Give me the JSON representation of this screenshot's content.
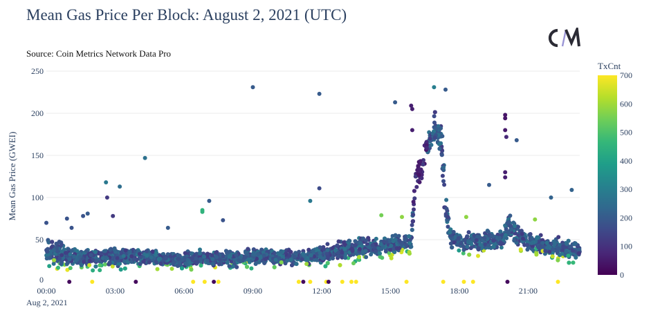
{
  "header": {
    "title": "Mean Gas Price Per Block: August 2, 2021 (UTC)",
    "source": "Source: Coin Metrics Network Data Pro",
    "logo_text": "CM"
  },
  "chart_data": {
    "type": "scatter",
    "title": "Mean Gas Price Per Block: August 2, 2021 (UTC)",
    "xlabel": "",
    "ylabel": "Mean Gas Price (GWEI)",
    "x_units": "hours UTC",
    "xlim": [
      0,
      23.25
    ],
    "ylim": [
      0,
      250
    ],
    "grid": true,
    "x_ticks": [
      {
        "value": 0,
        "label": "00:00"
      },
      {
        "value": 3,
        "label": "03:00"
      },
      {
        "value": 6,
        "label": "06:00"
      },
      {
        "value": 9,
        "label": "09:00"
      },
      {
        "value": 12,
        "label": "12:00"
      },
      {
        "value": 15,
        "label": "15:00"
      },
      {
        "value": 18,
        "label": "18:00"
      },
      {
        "value": 21,
        "label": "21:00"
      }
    ],
    "x_date_label": "Aug 2, 2021",
    "y_ticks": [
      0,
      50,
      100,
      150,
      200,
      250
    ],
    "colorbar": {
      "title": "TxCnt",
      "range": [
        0,
        700
      ],
      "ticks": [
        0,
        100,
        200,
        300,
        400,
        500,
        600,
        700
      ],
      "colorscale": [
        "#440154",
        "#482878",
        "#3e4989",
        "#31688e",
        "#26828e",
        "#1f9e89",
        "#35b779",
        "#6ece58",
        "#b5de2b",
        "#fde725"
      ],
      "placement": "right"
    },
    "trend": [
      {
        "hour": 0.0,
        "mean": 38,
        "spread": 12
      },
      {
        "hour": 1.0,
        "mean": 30,
        "spread": 9
      },
      {
        "hour": 2.0,
        "mean": 28,
        "spread": 8
      },
      {
        "hour": 3.0,
        "mean": 30,
        "spread": 8
      },
      {
        "hour": 4.0,
        "mean": 30,
        "spread": 7
      },
      {
        "hour": 5.0,
        "mean": 28,
        "spread": 7
      },
      {
        "hour": 6.0,
        "mean": 26,
        "spread": 6
      },
      {
        "hour": 7.0,
        "mean": 28,
        "spread": 7
      },
      {
        "hour": 8.0,
        "mean": 28,
        "spread": 7
      },
      {
        "hour": 9.0,
        "mean": 30,
        "spread": 7
      },
      {
        "hour": 10.0,
        "mean": 30,
        "spread": 7
      },
      {
        "hour": 11.0,
        "mean": 30,
        "spread": 7
      },
      {
        "hour": 12.0,
        "mean": 32,
        "spread": 8
      },
      {
        "hour": 13.0,
        "mean": 38,
        "spread": 9
      },
      {
        "hour": 14.0,
        "mean": 42,
        "spread": 9
      },
      {
        "hour": 15.0,
        "mean": 45,
        "spread": 9
      },
      {
        "hour": 15.9,
        "mean": 48,
        "spread": 8
      },
      {
        "hour": 16.1,
        "mean": 120,
        "spread": 15
      },
      {
        "hour": 16.5,
        "mean": 150,
        "spread": 15
      },
      {
        "hour": 16.9,
        "mean": 180,
        "spread": 15
      },
      {
        "hour": 17.2,
        "mean": 170,
        "spread": 14
      },
      {
        "hour": 17.4,
        "mean": 90,
        "spread": 20
      },
      {
        "hour": 17.6,
        "mean": 55,
        "spread": 10
      },
      {
        "hour": 18.0,
        "mean": 48,
        "spread": 9
      },
      {
        "hour": 19.0,
        "mean": 48,
        "spread": 9
      },
      {
        "hour": 19.9,
        "mean": 50,
        "spread": 9
      },
      {
        "hour": 20.1,
        "mean": 68,
        "spread": 12
      },
      {
        "hour": 20.6,
        "mean": 55,
        "spread": 10
      },
      {
        "hour": 21.0,
        "mean": 48,
        "spread": 8
      },
      {
        "hour": 22.0,
        "mean": 42,
        "spread": 8
      },
      {
        "hour": 23.25,
        "mean": 36,
        "spread": 8
      }
    ],
    "outliers": [
      {
        "x": 0.0,
        "y": 70,
        "tx": 180
      },
      {
        "x": 0.9,
        "y": 75,
        "tx": 180
      },
      {
        "x": 1.1,
        "y": 64,
        "tx": 180
      },
      {
        "x": 1.6,
        "y": 78,
        "tx": 180
      },
      {
        "x": 1.8,
        "y": 81,
        "tx": 200
      },
      {
        "x": 2.6,
        "y": 118,
        "tx": 280
      },
      {
        "x": 2.65,
        "y": 100,
        "tx": 120
      },
      {
        "x": 3.2,
        "y": 113,
        "tx": 250
      },
      {
        "x": 2.9,
        "y": 78,
        "tx": 120
      },
      {
        "x": 4.3,
        "y": 147,
        "tx": 260
      },
      {
        "x": 5.3,
        "y": 64,
        "tx": 200
      },
      {
        "x": 6.8,
        "y": 85,
        "tx": 450
      },
      {
        "x": 6.8,
        "y": 83,
        "tx": 450
      },
      {
        "x": 7.1,
        "y": 96,
        "tx": 200
      },
      {
        "x": 7.7,
        "y": 73,
        "tx": 180
      },
      {
        "x": 9.0,
        "y": 231,
        "tx": 200
      },
      {
        "x": 11.9,
        "y": 223,
        "tx": 200
      },
      {
        "x": 11.9,
        "y": 111,
        "tx": 160
      },
      {
        "x": 11.5,
        "y": 96,
        "tx": 280
      },
      {
        "x": 15.2,
        "y": 213,
        "tx": 200
      },
      {
        "x": 15.9,
        "y": 209,
        "tx": 60
      },
      {
        "x": 15.95,
        "y": 205,
        "tx": 60
      },
      {
        "x": 15.95,
        "y": 180,
        "tx": 60
      },
      {
        "x": 16.0,
        "y": 95,
        "tx": 60
      },
      {
        "x": 16.9,
        "y": 231,
        "tx": 300
      },
      {
        "x": 17.4,
        "y": 228,
        "tx": 200
      },
      {
        "x": 20.0,
        "y": 198,
        "tx": 40
      },
      {
        "x": 20.0,
        "y": 194,
        "tx": 40
      },
      {
        "x": 20.0,
        "y": 180,
        "tx": 50
      },
      {
        "x": 20.05,
        "y": 172,
        "tx": 80
      },
      {
        "x": 20.5,
        "y": 168,
        "tx": 200
      },
      {
        "x": 20.0,
        "y": 130,
        "tx": 60
      },
      {
        "x": 20.0,
        "y": 124,
        "tx": 60
      },
      {
        "x": 19.3,
        "y": 115,
        "tx": 200
      },
      {
        "x": 22.9,
        "y": 109,
        "tx": 220
      },
      {
        "x": 22.0,
        "y": 100,
        "tx": 220
      },
      {
        "x": 18.3,
        "y": 77,
        "tx": 580
      },
      {
        "x": 21.3,
        "y": 74,
        "tx": 580
      },
      {
        "x": 14.6,
        "y": 79,
        "tx": 550
      },
      {
        "x": 15.5,
        "y": 77,
        "tx": 580
      }
    ],
    "zero_points": [
      {
        "x": 1.0,
        "y": 0,
        "tx": 20
      },
      {
        "x": 2.0,
        "y": 0,
        "tx": 700
      },
      {
        "x": 3.9,
        "y": 0,
        "tx": 20
      },
      {
        "x": 6.4,
        "y": 0,
        "tx": 700
      },
      {
        "x": 6.9,
        "y": 0,
        "tx": 700
      },
      {
        "x": 7.3,
        "y": 0,
        "tx": 20
      },
      {
        "x": 7.5,
        "y": 0,
        "tx": 700
      },
      {
        "x": 11.0,
        "y": 0,
        "tx": 700
      },
      {
        "x": 11.2,
        "y": 0,
        "tx": 20
      },
      {
        "x": 11.5,
        "y": 0,
        "tx": 700
      },
      {
        "x": 12.2,
        "y": 0,
        "tx": 700
      },
      {
        "x": 12.3,
        "y": 0,
        "tx": 20
      },
      {
        "x": 12.9,
        "y": 0,
        "tx": 700
      },
      {
        "x": 13.3,
        "y": 0,
        "tx": 700
      },
      {
        "x": 13.5,
        "y": 0,
        "tx": 700
      },
      {
        "x": 15.7,
        "y": 0,
        "tx": 700
      },
      {
        "x": 17.3,
        "y": 0,
        "tx": 700
      },
      {
        "x": 18.2,
        "y": 0,
        "tx": 700
      },
      {
        "x": 18.6,
        "y": 0,
        "tx": 700
      },
      {
        "x": 20.1,
        "y": 0,
        "tx": 20
      },
      {
        "x": 22.3,
        "y": 0,
        "tx": 700
      }
    ]
  }
}
